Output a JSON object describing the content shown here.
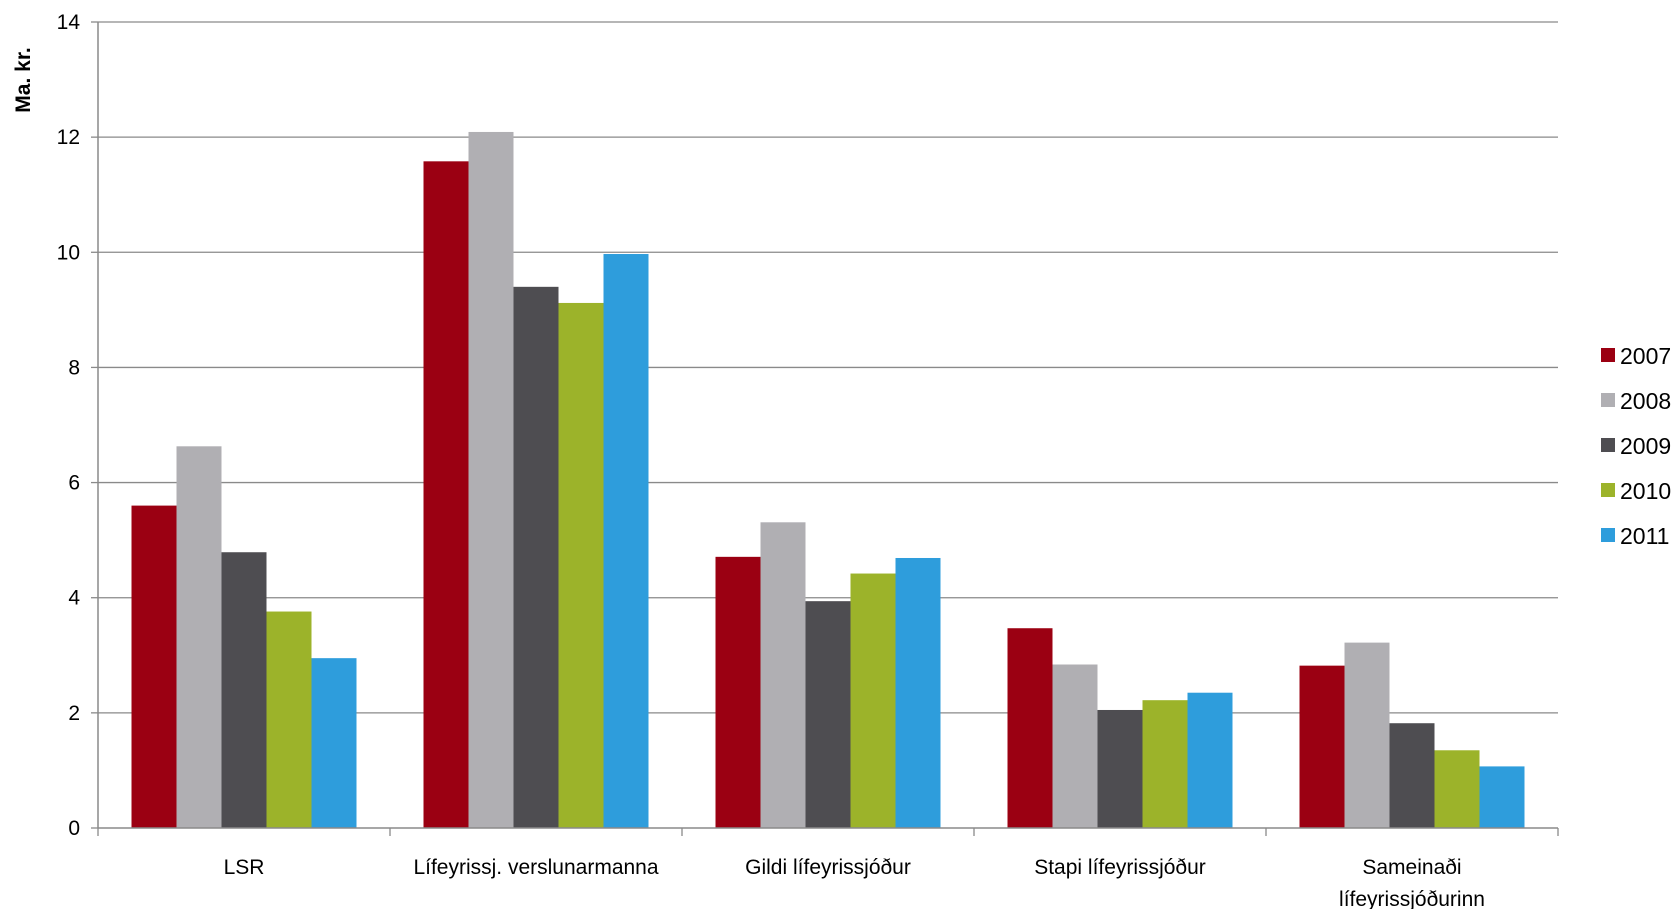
{
  "chart_data": {
    "type": "bar",
    "title": "",
    "xlabel": "",
    "ylabel": "Ma. kr.",
    "ylim": [
      0,
      14
    ],
    "yticks": [
      0,
      2,
      4,
      6,
      8,
      10,
      12,
      14
    ],
    "grid": true,
    "legend_position": "right",
    "categories": [
      [
        "LSR"
      ],
      [
        "Lífeyrissj. verslunarmanna"
      ],
      [
        "Gildi lífeyrissjóður"
      ],
      [
        "Stapi lífeyrissjóður"
      ],
      [
        "Sameinaði",
        "lífeyrissjóðurinn"
      ]
    ],
    "series": [
      {
        "name": "2007",
        "color": "#9b0012",
        "values": [
          5.6,
          11.58,
          4.71,
          3.47,
          2.82
        ]
      },
      {
        "name": "2008",
        "color": "#b0afb3",
        "values": [
          6.63,
          12.09,
          5.31,
          2.84,
          3.22
        ]
      },
      {
        "name": "2009",
        "color": "#4e4d51",
        "values": [
          4.79,
          9.4,
          3.94,
          2.05,
          1.82
        ]
      },
      {
        "name": "2010",
        "color": "#9cb32a",
        "values": [
          3.76,
          9.12,
          4.42,
          2.22,
          1.35
        ]
      },
      {
        "name": "2011",
        "color": "#2e9ddc",
        "values": [
          2.95,
          9.97,
          4.69,
          2.35,
          1.07
        ]
      }
    ]
  }
}
